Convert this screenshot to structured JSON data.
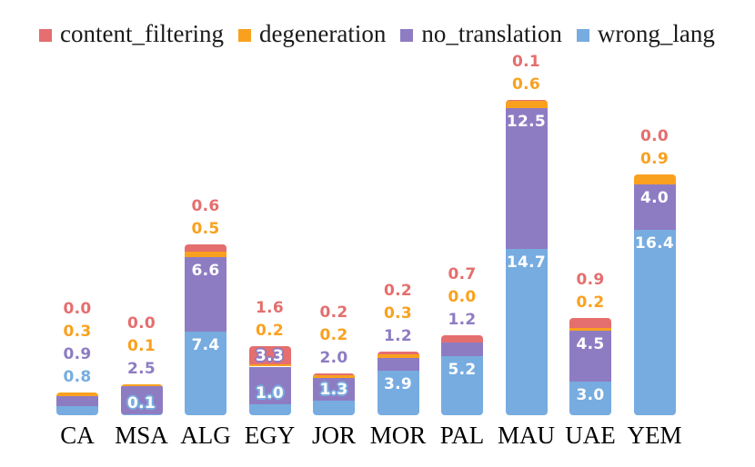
{
  "chart_data": {
    "type": "bar",
    "stacked": true,
    "orientation": "vertical",
    "title": "",
    "xlabel": "",
    "ylabel": "",
    "grid": false,
    "axes_hidden": true,
    "legend_position": "top-left",
    "value_label_decimals": 1,
    "ylim": [
      0,
      27.9
    ],
    "categories": [
      "CA",
      "MSA",
      "ALG",
      "EGY",
      "JOR",
      "MOR",
      "PAL",
      "MAU",
      "UAE",
      "YEM"
    ],
    "series": [
      {
        "name": "content_filtering",
        "color": "#e56e6e",
        "values": [
          0.0,
          0.0,
          0.6,
          1.6,
          0.2,
          0.2,
          0.7,
          0.1,
          0.9,
          0.0
        ],
        "label_placement": [
          "out",
          "out",
          "out",
          "out",
          "out",
          "out",
          "out",
          "out",
          "out",
          "out"
        ]
      },
      {
        "name": "degeneration",
        "color": "#f9a11f",
        "values": [
          0.3,
          0.1,
          0.5,
          0.2,
          0.2,
          0.3,
          0.0,
          0.6,
          0.2,
          0.9
        ],
        "label_placement": [
          "out",
          "out",
          "out",
          "out",
          "out",
          "out",
          "out",
          "out",
          "out",
          "out"
        ]
      },
      {
        "name": "no_translation",
        "color": "#8e7cc3",
        "values": [
          0.9,
          2.5,
          6.6,
          3.3,
          2.0,
          1.2,
          1.2,
          12.5,
          4.5,
          4.0
        ],
        "label_placement": [
          "out",
          "out",
          "in",
          "over",
          "out",
          "out",
          "out",
          "in",
          "in",
          "in"
        ]
      },
      {
        "name": "wrong_lang",
        "color": "#77ace0",
        "values": [
          0.8,
          0.1,
          7.4,
          1.0,
          1.3,
          3.9,
          5.2,
          14.7,
          3.0,
          16.4
        ],
        "label_placement": [
          "out",
          "over",
          "in",
          "over",
          "over",
          "in",
          "in",
          "in",
          "in",
          "in"
        ]
      }
    ]
  }
}
